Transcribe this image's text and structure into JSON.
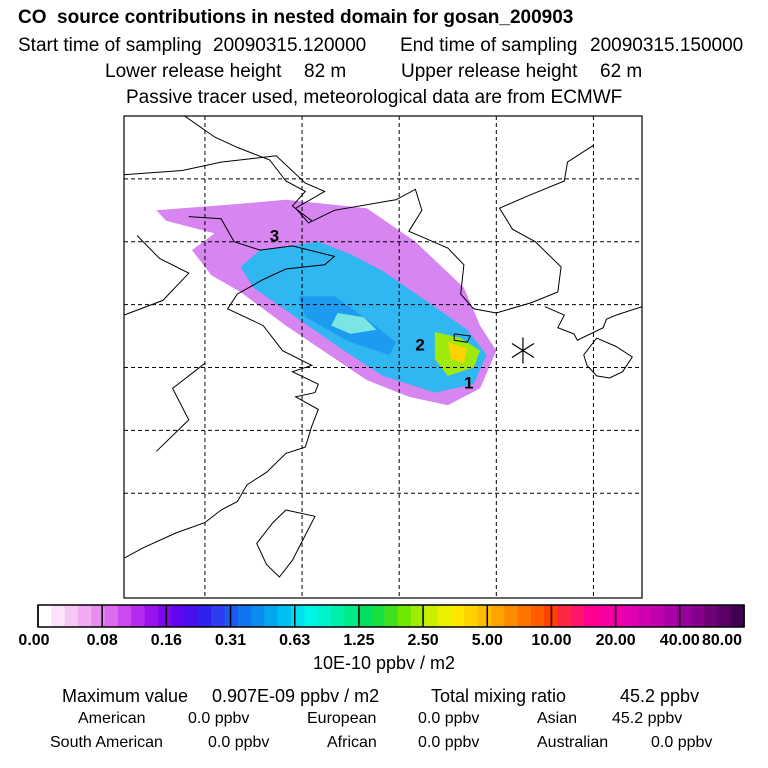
{
  "title": "CO  source contributions in nested domain for gosan_200903",
  "start_label": "Start time of sampling",
  "start_value": "20090315.120000",
  "end_label": "End time of sampling",
  "end_value": "20090315.150000",
  "lower_label": "Lower release height",
  "lower_value": "82 m",
  "upper_label": "Upper release height",
  "upper_value": "62 m",
  "tracer_note": "Passive tracer used, meteorological data are from ECMWF",
  "chart_data": {
    "type": "heatmap",
    "description_units": "10E-10 ppbv / m2",
    "colorbar_ticks": [
      "0.00",
      "0.08",
      "0.16",
      "0.31",
      "0.63",
      "1.25",
      "2.50",
      "5.00",
      "10.00",
      "20.00",
      "40.00",
      "80.00"
    ],
    "colorbar_colors": [
      "#ffffff",
      "#fbe4fb",
      "#f6c8f6",
      "#f1abf3",
      "#e98cf0",
      "#dd6cee",
      "#cc48ef",
      "#b62af0",
      "#9a12f0",
      "#7e08f0",
      "#6106ef",
      "#4510ec",
      "#2f22ec",
      "#2f3cf0",
      "#1a5af0",
      "#1174f0",
      "#0b8cf0",
      "#05a6f0",
      "#00c0f0",
      "#00e0f0",
      "#00f4e8",
      "#00f4cc",
      "#00f0aa",
      "#00ec88",
      "#00e060",
      "#14e040",
      "#40e020",
      "#70e800",
      "#a0ec00",
      "#c8f000",
      "#ecf000",
      "#ffe800",
      "#ffd200",
      "#ffbc00",
      "#ffa400",
      "#ff8c00",
      "#ff7400",
      "#ff5c00",
      "#ff4000",
      "#ff2840",
      "#ff1470",
      "#ff0090",
      "#f800a0",
      "#ee00a8",
      "#e000b0",
      "#d000b0",
      "#bf00ae",
      "#ac00a8",
      "#98009c",
      "#84008c",
      "#6e007a",
      "#580066",
      "#420050"
    ],
    "labels": [
      {
        "text": "1",
        "lon": 126.5,
        "lat": 31.0
      },
      {
        "text": "2",
        "lon": 125.0,
        "lat": 32.8
      },
      {
        "text": "3",
        "lon": 120.5,
        "lat": 38.0
      }
    ],
    "receptor": {
      "name": "gosan",
      "lon": 126.16,
      "lat": 33.29
    },
    "plumes": [
      {
        "level": "low",
        "color": "#d47ef0",
        "points": [
          [
            117.0,
            39.5
          ],
          [
            119.5,
            39.8
          ],
          [
            121.0,
            40.0
          ],
          [
            123.5,
            39.6
          ],
          [
            125.0,
            38.0
          ],
          [
            126.5,
            35.8
          ],
          [
            127.0,
            34.0
          ],
          [
            127.5,
            32.8
          ],
          [
            127.0,
            31.0
          ],
          [
            126.0,
            30.2
          ],
          [
            124.8,
            30.6
          ],
          [
            123.5,
            31.4
          ],
          [
            121.0,
            34.0
          ],
          [
            119.6,
            35.6
          ],
          [
            118.7,
            36.4
          ],
          [
            118.1,
            37.6
          ],
          [
            118.8,
            38.4
          ],
          [
            117.3,
            39.0
          ]
        ]
      },
      {
        "level": "mid",
        "color": "#27b8f0",
        "points": [
          [
            120.2,
            37.6
          ],
          [
            122.0,
            38.0
          ],
          [
            123.0,
            37.4
          ],
          [
            124.0,
            36.6
          ],
          [
            125.5,
            35.0
          ],
          [
            126.6,
            33.8
          ],
          [
            127.2,
            32.6
          ],
          [
            126.8,
            31.2
          ],
          [
            125.6,
            30.8
          ],
          [
            124.0,
            31.6
          ],
          [
            122.8,
            32.8
          ],
          [
            121.4,
            34.3
          ],
          [
            120.0,
            35.8
          ],
          [
            119.6,
            36.8
          ]
        ]
      },
      {
        "level": "high",
        "color": "#1c9af0",
        "points": [
          [
            121.4,
            35.4
          ],
          [
            122.5,
            35.4
          ],
          [
            123.6,
            34.2
          ],
          [
            124.4,
            33.2
          ],
          [
            124.2,
            32.6
          ],
          [
            123.0,
            33.2
          ],
          [
            121.6,
            34.4
          ]
        ]
      },
      {
        "level": "peak",
        "color": "#7feae0",
        "points": [
          [
            122.6,
            34.6
          ],
          [
            123.4,
            34.4
          ],
          [
            123.8,
            33.8
          ],
          [
            123.0,
            33.6
          ],
          [
            122.4,
            34.0
          ]
        ]
      },
      {
        "level": "coast",
        "color": "#a6ec00",
        "points": [
          [
            125.6,
            33.7
          ],
          [
            126.4,
            33.4
          ],
          [
            127.0,
            32.8
          ],
          [
            126.8,
            32.0
          ],
          [
            126.0,
            31.6
          ],
          [
            125.6,
            32.4
          ]
        ]
      },
      {
        "level": "hot",
        "color": "#ffd200",
        "points": [
          [
            126.0,
            33.2
          ],
          [
            126.6,
            32.9
          ],
          [
            126.5,
            32.2
          ],
          [
            126.1,
            32.4
          ]
        ]
      }
    ],
    "coastlines": [
      [
        [
          116.0,
          44.0
        ],
        [
          117.5,
          44.4
        ],
        [
          118.8,
          43.0
        ],
        [
          119.5,
          42.5
        ],
        [
          120.5,
          41.9
        ]
      ],
      [
        [
          116.0,
          41.2
        ],
        [
          117.8,
          41.4
        ],
        [
          119.0,
          41.8
        ],
        [
          120.7,
          42.1
        ],
        [
          121.6,
          40.8
        ],
        [
          122.2,
          40.4
        ],
        [
          121.3,
          39.6
        ],
        [
          121.7,
          38.9
        ],
        [
          122.5,
          39.5
        ],
        [
          124.0,
          39.9
        ],
        [
          124.4,
          40.0
        ],
        [
          125.0,
          40.5
        ],
        [
          125.2,
          39.5
        ],
        [
          124.8,
          38.5
        ],
        [
          126.0,
          37.7
        ],
        [
          126.5,
          36.9
        ],
        [
          126.4,
          35.5
        ],
        [
          126.8,
          34.8
        ],
        [
          127.5,
          34.6
        ],
        [
          128.6,
          35.1
        ],
        [
          129.4,
          35.6
        ],
        [
          129.5,
          36.8
        ],
        [
          128.7,
          38.0
        ],
        [
          128.0,
          38.6
        ],
        [
          127.6,
          39.6
        ],
        [
          128.5,
          40.2
        ],
        [
          129.6,
          40.9
        ],
        [
          129.7,
          41.8
        ],
        [
          130.5,
          42.6
        ]
      ],
      [
        [
          120.5,
          41.9
        ],
        [
          121.0,
          40.9
        ],
        [
          121.6,
          40.4
        ],
        [
          121.2,
          39.7
        ],
        [
          121.8,
          39.0
        ]
      ],
      [
        [
          118.0,
          39.2
        ],
        [
          119.0,
          39.1
        ],
        [
          119.4,
          38.0
        ],
        [
          120.2,
          37.6
        ],
        [
          121.2,
          37.8
        ],
        [
          122.5,
          37.3
        ],
        [
          122.2,
          36.9
        ],
        [
          121.0,
          36.7
        ],
        [
          120.3,
          36.2
        ],
        [
          119.5,
          35.5
        ],
        [
          119.2,
          34.8
        ],
        [
          120.3,
          34.0
        ],
        [
          120.9,
          32.8
        ],
        [
          121.8,
          32.1
        ],
        [
          121.2,
          31.8
        ],
        [
          122.0,
          31.2
        ],
        [
          121.9,
          30.8
        ],
        [
          121.3,
          30.6
        ],
        [
          122.0,
          30.0
        ],
        [
          121.8,
          29.2
        ],
        [
          121.6,
          28.2
        ],
        [
          121.0,
          27.9
        ],
        [
          120.4,
          27.0
        ],
        [
          119.8,
          26.4
        ],
        [
          119.5,
          25.6
        ],
        [
          119.0,
          25.2
        ],
        [
          118.5,
          24.6
        ],
        [
          117.6,
          24.1
        ],
        [
          116.6,
          23.4
        ],
        [
          116.0,
          22.9
        ]
      ],
      [
        [
          121.0,
          25.2
        ],
        [
          121.9,
          24.9
        ],
        [
          121.6,
          24.0
        ],
        [
          121.2,
          22.8
        ],
        [
          120.8,
          22.0
        ],
        [
          120.4,
          22.6
        ],
        [
          120.1,
          23.6
        ],
        [
          120.6,
          24.6
        ],
        [
          121.0,
          25.2
        ]
      ],
      [
        [
          126.2,
          33.6
        ],
        [
          126.7,
          33.5
        ],
        [
          126.6,
          33.2
        ],
        [
          126.2,
          33.3
        ],
        [
          126.2,
          33.6
        ]
      ],
      [
        [
          129.0,
          34.9
        ],
        [
          129.6,
          34.5
        ],
        [
          129.4,
          33.9
        ],
        [
          129.9,
          33.6
        ],
        [
          130.0,
          33.3
        ],
        [
          130.8,
          33.9
        ],
        [
          130.9,
          34.3
        ],
        [
          131.2,
          34.5
        ],
        [
          132.2,
          35.0
        ]
      ],
      [
        [
          130.2,
          32.6
        ],
        [
          130.3,
          32.1
        ],
        [
          130.6,
          31.6
        ],
        [
          131.0,
          31.5
        ],
        [
          131.4,
          31.8
        ],
        [
          131.7,
          32.5
        ],
        [
          131.2,
          33.0
        ],
        [
          130.6,
          33.4
        ],
        [
          130.2,
          32.6
        ]
      ],
      [
        [
          116.0,
          34.5
        ],
        [
          117.2,
          35.2
        ],
        [
          118.0,
          36.5
        ],
        [
          117.1,
          37.2
        ],
        [
          116.4,
          38.3
        ]
      ],
      [
        [
          117.0,
          28.0
        ],
        [
          118.0,
          29.5
        ],
        [
          117.5,
          31.0
        ],
        [
          118.5,
          32.2
        ]
      ]
    ]
  },
  "stats": {
    "max_label": "Maximum value",
    "max_value": "0.907E-09 ppbv / m2",
    "total_label": "Total mixing ratio",
    "total_value": "45.2 ppbv"
  },
  "sources": [
    {
      "name": "American",
      "value": "0.0 ppbv"
    },
    {
      "name": "European",
      "value": "0.0 ppbv"
    },
    {
      "name": "Asian",
      "value": "45.2 ppbv"
    },
    {
      "name": "South American",
      "value": "0.0 ppbv"
    },
    {
      "name": "African",
      "value": "0.0 ppbv"
    },
    {
      "name": "Australian",
      "value": "0.0 ppbv"
    }
  ]
}
